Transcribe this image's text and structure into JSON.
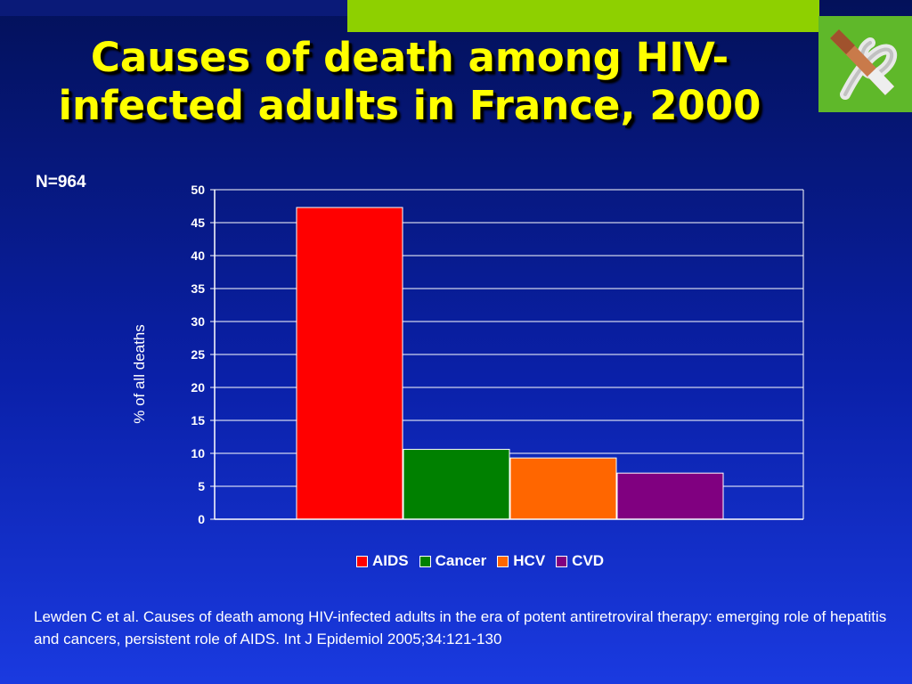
{
  "slide": {
    "title": "Causes of death among HIV-infected adults in France, 2000",
    "n_label": "N=964",
    "citation": "Lewden C et al. Causes of death among HIV-infected adults in the era of potent antiretroviral therapy: emerging role of hepatitis and cancers, persistent role of AIDS. Int J Epidemiol 2005;34:121-130",
    "logo_icon": "cigarette-ribbon-icon"
  },
  "chart_data": {
    "type": "bar",
    "title": "",
    "xlabel": "",
    "ylabel": "% of all deaths",
    "ylim": [
      0,
      50
    ],
    "yticks": [
      0,
      5,
      10,
      15,
      20,
      25,
      30,
      35,
      40,
      45,
      50
    ],
    "grid": true,
    "legend_position": "bottom",
    "series": [
      {
        "name": "AIDS",
        "value": 47.3,
        "color": "#ff0000"
      },
      {
        "name": "Cancer",
        "value": 10.6,
        "color": "#008000"
      },
      {
        "name": "HCV",
        "value": 9.3,
        "color": "#ff6600"
      },
      {
        "name": "CVD",
        "value": 7.0,
        "color": "#800080"
      }
    ]
  }
}
